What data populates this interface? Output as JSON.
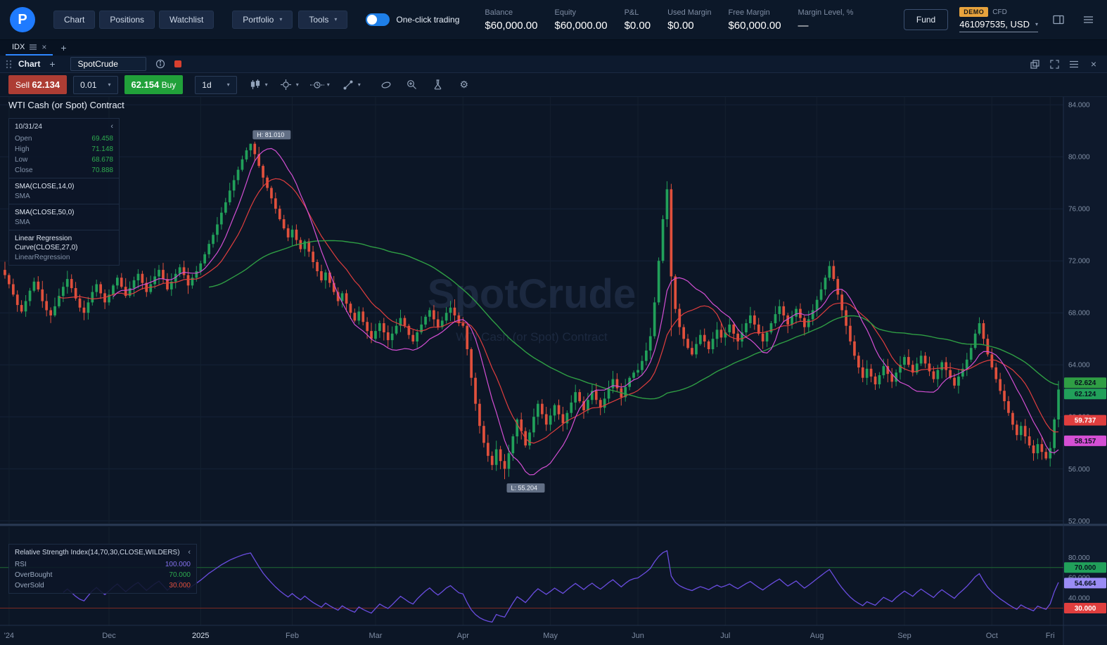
{
  "icons": {
    "plus": "+",
    "close": "×",
    "caret": "▾",
    "collapse": "‹",
    "gear": "⚙"
  },
  "header": {
    "nav": [
      {
        "label": "Chart"
      },
      {
        "label": "Positions"
      },
      {
        "label": "Watchlist"
      }
    ],
    "dropdowns": [
      {
        "label": "Portfolio"
      },
      {
        "label": "Tools"
      }
    ],
    "one_click_label": "One-click trading",
    "stats": [
      {
        "label": "Balance",
        "value": "$60,000.00"
      },
      {
        "label": "Equity",
        "value": "$60,000.00"
      },
      {
        "label": "P&L",
        "value": "$0.00"
      },
      {
        "label": "Used Margin",
        "value": "$0.00"
      },
      {
        "label": "Free Margin",
        "value": "$60,000.00"
      },
      {
        "label": "Margin Level, %",
        "value": "—"
      }
    ],
    "fund_button": "Fund",
    "account": {
      "badge": "DEMO",
      "type": "CFD",
      "id": "461097535, USD"
    },
    "logo_letter": "P"
  },
  "tabs": {
    "active": "IDX"
  },
  "window": {
    "title": "Chart",
    "symbol": "SpotCrude"
  },
  "toolbar": {
    "sell_label": "Sell",
    "sell_price": "62.134",
    "volume": "0.01",
    "buy_price": "62.154",
    "buy_label": "Buy",
    "timeframe": "1d"
  },
  "chart": {
    "title": "WTI Cash (or Spot) Contract",
    "watermark_line1": "SpotCrude",
    "watermark_line2": "WTI Cash (or Spot) Contract",
    "info_panel": {
      "date": "10/31/24",
      "rows": [
        {
          "label": "Open",
          "value": "69.458"
        },
        {
          "label": "High",
          "value": "71.148"
        },
        {
          "label": "Low",
          "value": "68.678"
        },
        {
          "label": "Close",
          "value": "70.888"
        }
      ],
      "indicators": [
        {
          "name": "SMA(CLOSE,14,0)",
          "type": "SMA"
        },
        {
          "name": "SMA(CLOSE,50,0)",
          "type": "SMA"
        },
        {
          "name": "Linear Regression Curve(CLOSE,27,0)",
          "type": "LinearRegression"
        }
      ]
    },
    "y_ticks": [
      84,
      80,
      76,
      72,
      68,
      64,
      60,
      56,
      52
    ],
    "price_range": {
      "min": 51.8,
      "max": 84.6
    },
    "price_badges": [
      {
        "value": 62.624,
        "label": "62.624",
        "color": "#2f9e44",
        "tc": "#07121f"
      },
      {
        "value": 62.124,
        "label": "62.124",
        "color": "#21a05a",
        "tc": "#07121f"
      },
      {
        "value": 59.737,
        "label": "59.737",
        "color": "#e03e3e",
        "tc": "#ffffff"
      },
      {
        "value": 58.157,
        "label": "58.157",
        "color": "#d44fd4",
        "tc": "#07121f"
      }
    ]
  },
  "rsi": {
    "legend_title": "Relative Strength Index(14,70,30,CLOSE,WILDERS)",
    "rows": [
      {
        "label": "RSI",
        "value": "100.000",
        "color": "#8673f0"
      },
      {
        "label": "OverBought",
        "value": "70.000",
        "color": "#2eac4f"
      },
      {
        "label": "OverSold",
        "value": "30.000",
        "color": "#e0503c"
      }
    ],
    "y_ticks": [
      80,
      60,
      40
    ],
    "badges": [
      {
        "value": 70,
        "label": "70.000",
        "color": "#21a05a",
        "tc": "#07121f"
      },
      {
        "value": 54.664,
        "label": "54.664",
        "color": "#9a8cf5",
        "tc": "#07121f"
      },
      {
        "value": 30,
        "label": "30.000",
        "color": "#e03e3e",
        "tc": "#ffffff"
      }
    ],
    "range": {
      "min": 13,
      "max": 110
    }
  },
  "time_axis": [
    {
      "label": "'24",
      "index": 1
    },
    {
      "label": "Dec",
      "index": 25
    },
    {
      "label": "2025",
      "index": 47
    },
    {
      "label": "Feb",
      "index": 69
    },
    {
      "label": "Mar",
      "index": 89
    },
    {
      "label": "Apr",
      "index": 110
    },
    {
      "label": "May",
      "index": 131
    },
    {
      "label": "Jun",
      "index": 152
    },
    {
      "label": "Jul",
      "index": 173
    },
    {
      "label": "Aug",
      "index": 195
    },
    {
      "label": "Sep",
      "index": 216
    },
    {
      "label": "Oct",
      "index": 237
    },
    {
      "label": "Fri",
      "index": 251
    }
  ],
  "chart_data": {
    "type": "candlestick",
    "symbol": "SpotCrude",
    "timeframe": "1d",
    "title": "WTI Cash (or Spot) Contract",
    "ylim": [
      52,
      84
    ],
    "closes": [
      70.9,
      70.2,
      69.4,
      68.6,
      68.1,
      68.9,
      69.7,
      70.4,
      69.8,
      68.9,
      68.2,
      67.8,
      68.5,
      69.3,
      70.0,
      70.6,
      69.9,
      69.1,
      68.4,
      68.0,
      68.8,
      69.6,
      70.2,
      69.5,
      68.8,
      69.4,
      70.1,
      70.7,
      70.0,
      69.3,
      69.9,
      70.5,
      71.0,
      70.3,
      69.6,
      70.2,
      70.8,
      71.3,
      70.6,
      69.8,
      70.4,
      71.0,
      71.5,
      70.9,
      70.1,
      70.7,
      71.2,
      71.8,
      72.5,
      73.3,
      74.0,
      74.8,
      75.7,
      76.5,
      77.4,
      78.2,
      79.0,
      79.8,
      80.5,
      81.0,
      80.2,
      79.3,
      78.4,
      77.6,
      76.8,
      76.0,
      75.2,
      74.5,
      73.8,
      74.4,
      73.6,
      72.9,
      73.5,
      72.7,
      71.9,
      71.2,
      70.5,
      71.1,
      70.3,
      69.6,
      68.9,
      69.5,
      68.7,
      68.0,
      67.4,
      68.1,
      67.3,
      66.6,
      66.0,
      66.6,
      67.2,
      66.5,
      65.9,
      66.4,
      67.0,
      67.6,
      67.0,
      66.3,
      65.8,
      66.5,
      67.1,
      67.7,
      68.2,
      67.5,
      66.9,
      67.4,
      68.0,
      68.4,
      67.8,
      67.2,
      67.0,
      65.2,
      63.0,
      61.0,
      59.3,
      58.0,
      57.0,
      56.3,
      57.5,
      56.6,
      56.0,
      57.2,
      58.5,
      59.8,
      58.9,
      57.8,
      58.8,
      60.0,
      61.0,
      60.2,
      59.4,
      60.1,
      60.9,
      60.2,
      59.5,
      60.3,
      61.1,
      61.9,
      61.2,
      60.5,
      61.3,
      62.0,
      61.3,
      60.7,
      61.4,
      62.2,
      62.9,
      62.2,
      61.5,
      62.3,
      63.0,
      63.4,
      63.6,
      64.3,
      65.1,
      66.2,
      68.8,
      72.0,
      75.2,
      77.5,
      70.8,
      68.3,
      66.9,
      66.0,
      65.3,
      64.8,
      65.6,
      66.3,
      65.8,
      65.2,
      66.0,
      66.7,
      66.1,
      66.5,
      67.1,
      66.4,
      65.8,
      66.5,
      67.2,
      67.8,
      67.1,
      66.4,
      65.8,
      66.5,
      67.2,
      67.9,
      68.5,
      67.8,
      67.1,
      67.7,
      68.3,
      67.6,
      66.9,
      67.5,
      68.2,
      69.0,
      69.8,
      70.7,
      71.6,
      70.6,
      69.4,
      68.2,
      67.0,
      65.8,
      64.7,
      63.8,
      63.0,
      63.7,
      63.1,
      62.5,
      63.2,
      63.9,
      63.3,
      62.7,
      63.4,
      64.0,
      64.6,
      64.0,
      63.4,
      64.1,
      64.7,
      64.1,
      63.5,
      62.9,
      63.6,
      64.2,
      63.6,
      63.0,
      62.4,
      63.1,
      63.7,
      64.4,
      65.3,
      66.4,
      67.2,
      66.0,
      64.8,
      63.8,
      62.9,
      62.0,
      61.2,
      60.3,
      59.4,
      58.6,
      59.3,
      58.5,
      57.8,
      57.2,
      57.9,
      57.3,
      56.8,
      57.6,
      59.8,
      62.1
    ],
    "high_marker": {
      "index": 59,
      "price": 81.01,
      "label": "H: 81.010"
    },
    "low_marker": {
      "index": 120,
      "price": 55.204,
      "label": "L: 55.204"
    },
    "candle_colors": {
      "up": "#21a05a",
      "down": "#e0503c"
    },
    "overlays": [
      {
        "name": "SMA(CLOSE,14,0)",
        "kind": "sma",
        "period": 14,
        "color": "#e03e3e"
      },
      {
        "name": "SMA(CLOSE,50,0)",
        "kind": "sma",
        "period": 50,
        "color": "#2f9e44"
      },
      {
        "name": "Linear Regression Curve(CLOSE,27,0)",
        "kind": "linreg",
        "period": 27,
        "color": "#d44fd4"
      }
    ],
    "rsi": {
      "period": 14,
      "overbought": 70,
      "oversold": 30,
      "color": "#6a4de0",
      "last_value": 54.664
    }
  }
}
